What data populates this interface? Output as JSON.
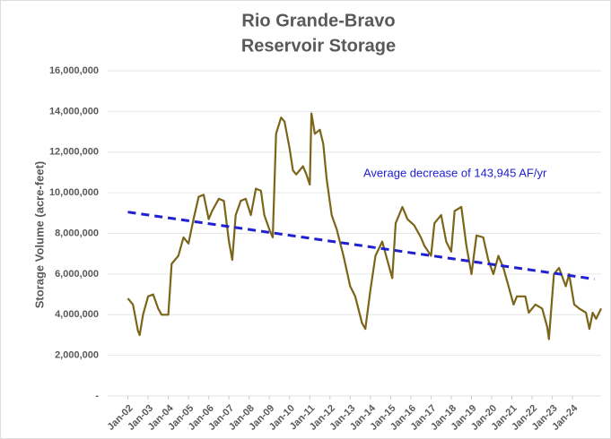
{
  "chart_data": {
    "type": "line",
    "title": [
      "Rio Grande-Bravo",
      "Reservoir Storage"
    ],
    "y_label": "Storage Volume (acre-feet)",
    "annotation": "Average decrease of 143,945 AF/yr",
    "xlim": [
      "2001-01",
      "2025-06"
    ],
    "xticks": [
      {
        "value": "2002-01",
        "label": "Jan-02"
      },
      {
        "value": "2003-01",
        "label": "Jan-03"
      },
      {
        "value": "2004-01",
        "label": "Jan-04"
      },
      {
        "value": "2005-01",
        "label": "Jan-05"
      },
      {
        "value": "2006-01",
        "label": "Jan-06"
      },
      {
        "value": "2007-01",
        "label": "Jan-07"
      },
      {
        "value": "2008-01",
        "label": "Jan-08"
      },
      {
        "value": "2009-01",
        "label": "Jan-09"
      },
      {
        "value": "2010-01",
        "label": "Jan-10"
      },
      {
        "value": "2011-01",
        "label": "Jan-11"
      },
      {
        "value": "2012-01",
        "label": "Jan-12"
      },
      {
        "value": "2013-01",
        "label": "Jan-13"
      },
      {
        "value": "2014-01",
        "label": "Jan-14"
      },
      {
        "value": "2015-01",
        "label": "Jan-15"
      },
      {
        "value": "2016-01",
        "label": "Jan-16"
      },
      {
        "value": "2017-01",
        "label": "Jan-17"
      },
      {
        "value": "2018-01",
        "label": "Jan-18"
      },
      {
        "value": "2019-01",
        "label": "Jan-19"
      },
      {
        "value": "2020-01",
        "label": "Jan-20"
      },
      {
        "value": "2021-01",
        "label": "Jan-21"
      },
      {
        "value": "2022-01",
        "label": "Jan-22"
      },
      {
        "value": "2023-01",
        "label": "Jan-23"
      },
      {
        "value": "2024-01",
        "label": "Jan-24"
      }
    ],
    "ylim": [
      0,
      16000000
    ],
    "yticks": [
      {
        "value": 0,
        "label": "-"
      },
      {
        "value": 2000000,
        "label": "2,000,000"
      },
      {
        "value": 4000000,
        "label": "4,000,000"
      },
      {
        "value": 6000000,
        "label": "6,000,000"
      },
      {
        "value": 8000000,
        "label": "8,000,000"
      },
      {
        "value": 10000000,
        "label": "10,000,000"
      },
      {
        "value": 12000000,
        "label": "12,000,000"
      },
      {
        "value": 14000000,
        "label": "14,000,000"
      },
      {
        "value": 16000000,
        "label": "16,000,000"
      }
    ],
    "grid": true,
    "series": [
      {
        "name": "Storage",
        "color": "#7a6519",
        "dash": false,
        "x": [
          "2002-01",
          "2002-04",
          "2002-07",
          "2002-08",
          "2002-10",
          "2003-01",
          "2003-04",
          "2003-07",
          "2003-09",
          "2004-01",
          "2004-03",
          "2004-07",
          "2004-10",
          "2005-01",
          "2005-04",
          "2005-07",
          "2005-10",
          "2006-01",
          "2006-03",
          "2006-07",
          "2006-10",
          "2007-01",
          "2007-03",
          "2007-05",
          "2007-08",
          "2007-11",
          "2008-02",
          "2008-05",
          "2008-08",
          "2008-10",
          "2009-01",
          "2009-03",
          "2009-05",
          "2009-08",
          "2009-10",
          "2010-01",
          "2010-03",
          "2010-05",
          "2010-09",
          "2010-11",
          "2011-01",
          "2011-02",
          "2011-04",
          "2011-07",
          "2011-09",
          "2011-11",
          "2012-02",
          "2012-05",
          "2012-09",
          "2013-01",
          "2013-04",
          "2013-08",
          "2013-10",
          "2014-01",
          "2014-04",
          "2014-08",
          "2014-11",
          "2015-02",
          "2015-04",
          "2015-08",
          "2015-11",
          "2016-03",
          "2016-07",
          "2016-09",
          "2017-01",
          "2017-03",
          "2017-07",
          "2017-10",
          "2018-01",
          "2018-03",
          "2018-07",
          "2018-10",
          "2019-01",
          "2019-04",
          "2019-08",
          "2019-11",
          "2020-02",
          "2020-05",
          "2020-08",
          "2020-11",
          "2021-02",
          "2021-04",
          "2021-09",
          "2021-11",
          "2022-03",
          "2022-07",
          "2022-10",
          "2022-11",
          "2023-02",
          "2023-05",
          "2023-09",
          "2023-11",
          "2024-02",
          "2024-05",
          "2024-09",
          "2024-11",
          "2025-01",
          "2025-03",
          "2025-06"
        ],
        "values": [
          4800000,
          4500000,
          3200000,
          3000000,
          4000000,
          4900000,
          5000000,
          4300000,
          4000000,
          4000000,
          6500000,
          6900000,
          7800000,
          7500000,
          8700000,
          9800000,
          9900000,
          8700000,
          9100000,
          9700000,
          9600000,
          7600000,
          6700000,
          8900000,
          9600000,
          9700000,
          8900000,
          10200000,
          10100000,
          8900000,
          8200000,
          7800000,
          12900000,
          13700000,
          13500000,
          12200000,
          11100000,
          10900000,
          11300000,
          10900000,
          10400000,
          13900000,
          12900000,
          13100000,
          12400000,
          10700000,
          8900000,
          8200000,
          6900000,
          5400000,
          4900000,
          3600000,
          3300000,
          5200000,
          6900000,
          7600000,
          6700000,
          5800000,
          8500000,
          9300000,
          8700000,
          8400000,
          7800000,
          7400000,
          6900000,
          8500000,
          8900000,
          7600000,
          7100000,
          9100000,
          9300000,
          7400000,
          6000000,
          7900000,
          7800000,
          6700000,
          6000000,
          6900000,
          6300000,
          5400000,
          4500000,
          4900000,
          4900000,
          4100000,
          4500000,
          4300000,
          3400000,
          2800000,
          6000000,
          6300000,
          5400000,
          6000000,
          4500000,
          4300000,
          4100000,
          3300000,
          4100000,
          3800000,
          4300000
        ]
      },
      {
        "name": "Trend",
        "color": "#2020d0",
        "dash": true,
        "x": [
          "2002-01",
          "2025-02"
        ],
        "values": [
          9050000,
          5750000
        ]
      }
    ]
  }
}
